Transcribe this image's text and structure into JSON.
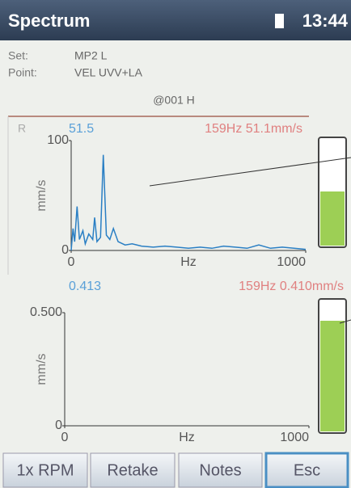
{
  "header": {
    "title": "Spectrum",
    "time": "13:44"
  },
  "info": {
    "set_label": "Set:",
    "set_value": "MP2 L",
    "point_label": "Point:",
    "point_value": "VEL UVV+LA",
    "location": "@001 H"
  },
  "chart_data": [
    {
      "type": "line",
      "channel": "R",
      "readout_left": "51.5",
      "readout_right": "159Hz 51.1mm/s",
      "ylabel": "mm/s",
      "xlabel": "Hz",
      "color": "#2a7fc4",
      "xlim": [
        0,
        1000
      ],
      "ylim": [
        0,
        100
      ],
      "xticks": [
        0,
        1000
      ],
      "yticks": [
        0,
        100
      ],
      "x": [
        0,
        8,
        15,
        25,
        35,
        50,
        60,
        75,
        92,
        100,
        110,
        125,
        137,
        150,
        165,
        180,
        200,
        230,
        260,
        300,
        350,
        400,
        450,
        500,
        550,
        600,
        650,
        700,
        750,
        800,
        850,
        900,
        950,
        1000
      ],
      "values": [
        0,
        20,
        8,
        40,
        10,
        18,
        6,
        15,
        10,
        30,
        8,
        12,
        87,
        14,
        10,
        20,
        8,
        5,
        6,
        4,
        3,
        4,
        3,
        2,
        3,
        2,
        4,
        3,
        2,
        5,
        2,
        3,
        2,
        1
      ]
    },
    {
      "type": "line",
      "readout_left": "0.413",
      "readout_right": "159Hz 0.410mm/s",
      "ylabel": "mm/s",
      "xlabel": "Hz",
      "color": "#2a7fc4",
      "xlim": [
        0,
        1000
      ],
      "ylim": [
        0,
        0.5
      ],
      "xticks": [
        0,
        1000
      ],
      "yticks": [
        0,
        {
          "value": 0.5,
          "label": "0.500"
        }
      ]
    }
  ],
  "buttons": [
    "1x RPM",
    "Retake",
    "Notes",
    "Esc"
  ]
}
